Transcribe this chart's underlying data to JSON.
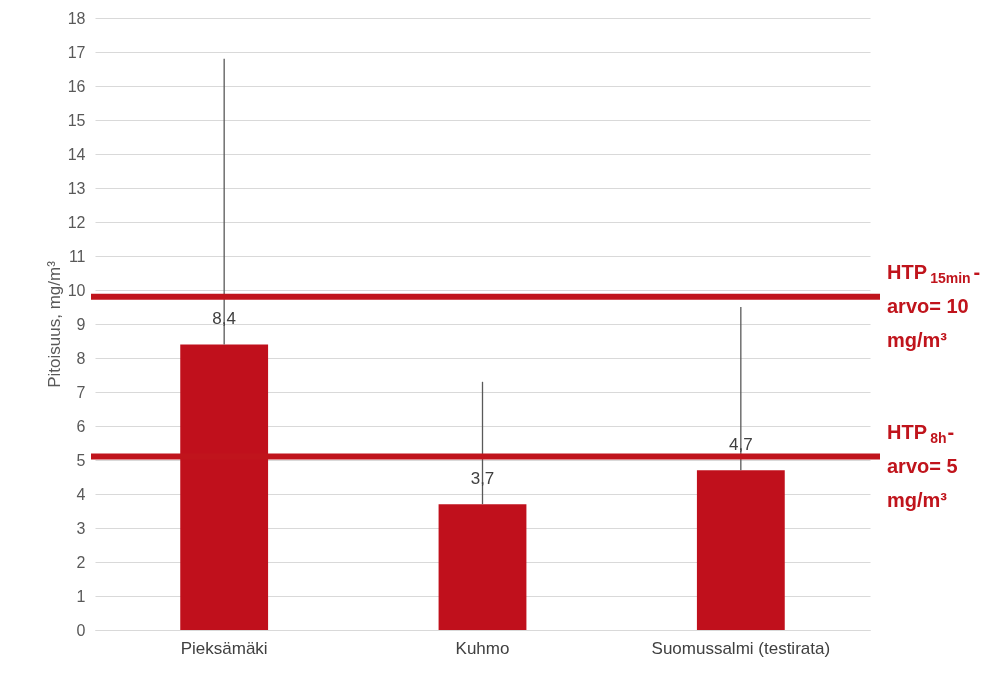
{
  "chart_data": {
    "type": "bar",
    "ylabel": "Pitoisuus, mg/m³",
    "categories": [
      "Pieksämäki",
      "Kuhmo",
      "Suomussalmi (testirata)"
    ],
    "series": [
      {
        "color": "#c0101c",
        "values": [
          8.4,
          3.7,
          4.7
        ],
        "errors": [
          [
            8.4,
            16.8
          ],
          [
            3.7,
            7.3
          ],
          [
            4.7,
            9.5
          ]
        ],
        "value_labels": [
          "8,4",
          "3,7",
          "4,7"
        ]
      }
    ],
    "ylim": [
      0,
      18
    ],
    "yticks": [
      0,
      1,
      2,
      3,
      4,
      5,
      6,
      7,
      8,
      9,
      10,
      11,
      12,
      13,
      14,
      15,
      16,
      17,
      18
    ],
    "grid": "y",
    "ref_lines": [
      {
        "axis": "y",
        "value": 9.8,
        "label": "HTP$_{15min}$-arvo= 10 mg/m³",
        "color": "#c0141c"
      },
      {
        "axis": "y",
        "value": 5.1,
        "label": "HTP$_{8h}$-arvo= 5 mg/m³",
        "color": "#c0141c"
      }
    ]
  }
}
